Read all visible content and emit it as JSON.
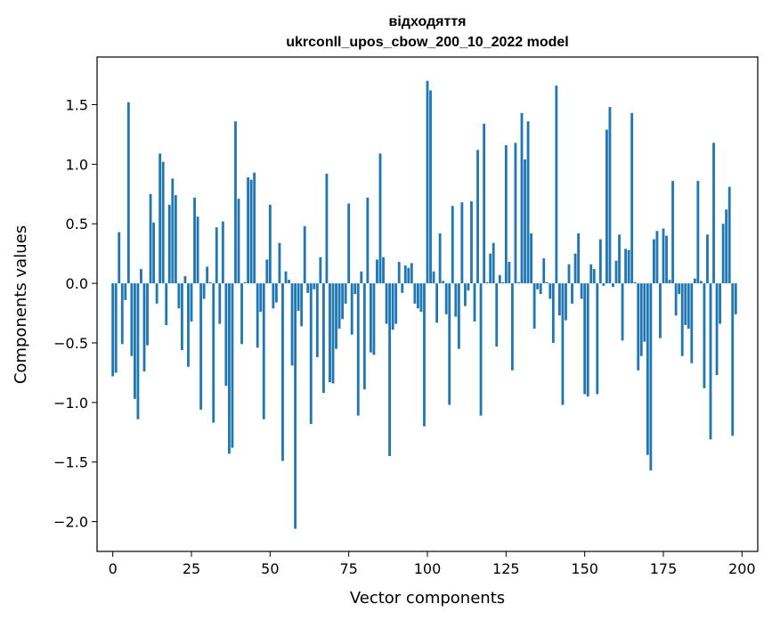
{
  "chart_data": {
    "type": "bar",
    "title": "відходяття",
    "subtitle": "ukrconll_upos_cbow_200_10_2022 model",
    "xlabel": "Vector components",
    "ylabel": "Components values",
    "xlim": [
      -5,
      205
    ],
    "ylim": [
      -2.25,
      1.9
    ],
    "xticks": [
      0,
      25,
      50,
      75,
      100,
      125,
      150,
      175,
      200
    ],
    "yticks": [
      -2.0,
      -1.5,
      -1.0,
      -0.5,
      0.0,
      0.5,
      1.0,
      1.5
    ],
    "ytick_labels": [
      "−2.0",
      "−1.5",
      "−1.0",
      "−0.5",
      "0.0",
      "0.5",
      "1.0",
      "1.5"
    ],
    "bar_color": "#1f77b4",
    "grid": false,
    "values": [
      -0.78,
      -0.75,
      0.43,
      -0.51,
      -0.14,
      1.52,
      -0.61,
      -0.97,
      -1.14,
      0.12,
      -0.74,
      -0.52,
      0.75,
      0.51,
      -0.17,
      1.09,
      1.02,
      -0.35,
      0.66,
      0.88,
      0.74,
      -0.21,
      -0.56,
      0.06,
      -0.7,
      -0.32,
      0.72,
      0.56,
      -1.06,
      -0.13,
      0.14,
      0.01,
      -1.17,
      0.47,
      -0.34,
      0.52,
      -0.86,
      -1.43,
      -1.38,
      1.36,
      0.71,
      -0.51,
      0.01,
      0.89,
      0.87,
      0.93,
      -0.54,
      -0.24,
      -1.14,
      0.2,
      0.66,
      -0.21,
      -0.16,
      0.34,
      -1.49,
      0.1,
      0.03,
      -0.69,
      -2.06,
      -0.23,
      -0.36,
      0.48,
      -0.08,
      -1.18,
      -0.05,
      -0.62,
      0.22,
      -0.92,
      0.92,
      -0.83,
      -0.84,
      -0.55,
      -0.38,
      -0.3,
      -0.17,
      0.67,
      -0.43,
      -0.09,
      -1.11,
      0.1,
      -0.89,
      0.72,
      -0.58,
      -0.6,
      0.2,
      1.09,
      0.22,
      -0.34,
      -1.45,
      -0.39,
      -0.34,
      0.18,
      -0.08,
      0.15,
      0.13,
      0.17,
      -0.17,
      -0.21,
      -0.24,
      -1.2,
      1.7,
      1.62,
      0.1,
      -0.33,
      0.42,
      0.02,
      -0.26,
      -1.02,
      0.65,
      -0.28,
      -0.55,
      0.68,
      -0.19,
      -0.06,
      0.69,
      -0.32,
      1.12,
      -1.11,
      1.34,
      0.01,
      0.25,
      0.34,
      -0.53,
      0.07,
      0.01,
      1.16,
      0.18,
      -0.73,
      1.18,
      0.01,
      1.43,
      1.04,
      1.36,
      0.42,
      -0.38,
      -0.05,
      -0.09,
      0.21,
      0.01,
      -0.13,
      -0.5,
      1.66,
      -0.27,
      -1.02,
      -0.31,
      0.16,
      -0.17,
      0.25,
      0.42,
      -0.13,
      -0.93,
      -0.95,
      0.16,
      0.12,
      -0.93,
      0.37,
      -0.02,
      1.29,
      1.48,
      -0.03,
      0.19,
      0.41,
      -0.48,
      0.29,
      0.28,
      1.43,
      0.01,
      -0.73,
      -0.61,
      -0.49,
      -1.44,
      -1.57,
      0.37,
      0.44,
      -0.46,
      0.46,
      0.4,
      0.03,
      0.86,
      -0.27,
      -0.09,
      -0.61,
      -0.35,
      -0.38,
      -0.67,
      0.04,
      0.86,
      0.02,
      -0.88,
      0.41,
      -1.31,
      1.18,
      -0.77,
      -0.34,
      0.5,
      0.62,
      0.81,
      -1.28,
      -0.26
    ]
  }
}
